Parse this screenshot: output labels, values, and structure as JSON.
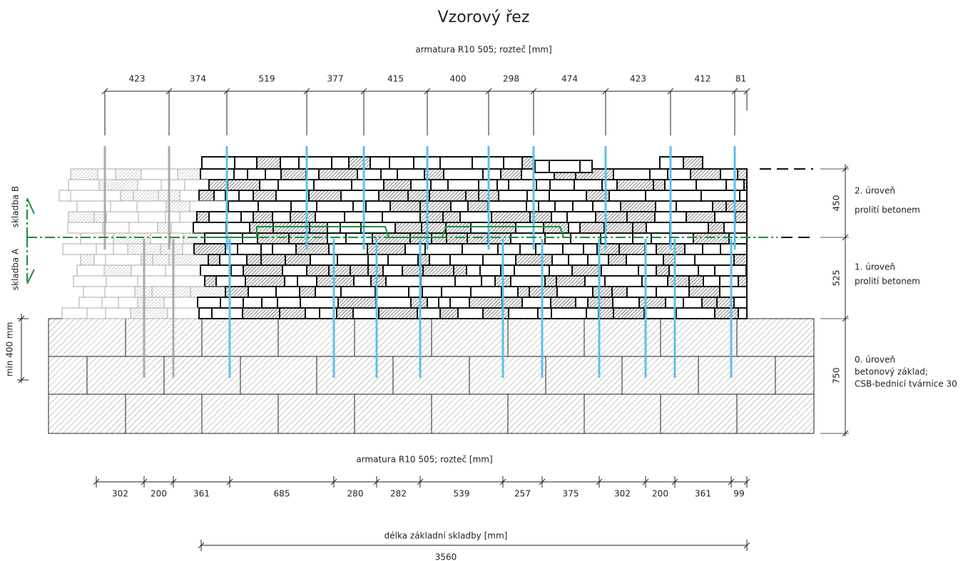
{
  "title": "Vzorový řez",
  "top_dimensions": {
    "label": "armatura R10 505; rozteč [mm]",
    "values": [
      423,
      374,
      519,
      377,
      415,
      400,
      298,
      474,
      423,
      412,
      81
    ]
  },
  "bottom_dimensions": {
    "label": "armatura R10 505; rozteč [mm]",
    "values": [
      302,
      200,
      361,
      685,
      280,
      282,
      539,
      257,
      375,
      302,
      200,
      361,
      99
    ]
  },
  "length": {
    "label": "délka základní skladby [mm]",
    "value": 3560
  },
  "left": {
    "upper": "skladba B",
    "lower": "skladba A",
    "min_depth": "min 400 mm"
  },
  "levels": [
    {
      "height": 450,
      "name": "2. úroveň",
      "description": [
        "prolití betonem"
      ]
    },
    {
      "height": 525,
      "name": "1. úroveň",
      "description": [
        "prolití betonem"
      ]
    },
    {
      "height": 750,
      "name": "0. úroveň",
      "description": [
        "betonový základ;",
        "CSB-bednicí tvárnice 30"
      ]
    }
  ]
}
